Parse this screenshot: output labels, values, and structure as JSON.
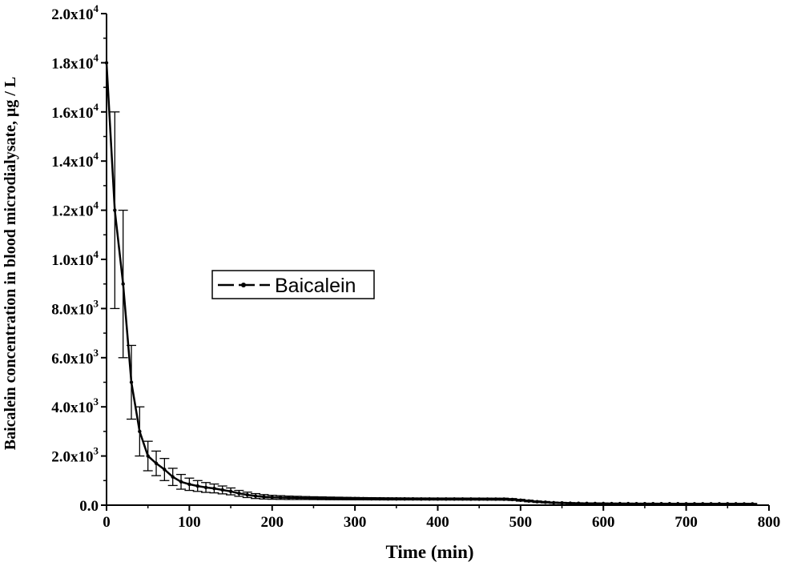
{
  "chart_data": {
    "type": "line",
    "title": "",
    "xlabel": "Time (min)",
    "ylabel": "Baicalein concentration in blood microdialysate, μg / L",
    "xlim": [
      0,
      800
    ],
    "ylim": [
      0,
      20000
    ],
    "x_ticks": [
      "0",
      "100",
      "200",
      "300",
      "400",
      "500",
      "600",
      "700",
      "800"
    ],
    "y_ticks": [
      {
        "mant": "0.0",
        "exp": ""
      },
      {
        "mant": "2.0x10",
        "exp": "3"
      },
      {
        "mant": "4.0x10",
        "exp": "3"
      },
      {
        "mant": "6.0x10",
        "exp": "3"
      },
      {
        "mant": "8.0x10",
        "exp": "3"
      },
      {
        "mant": "1.0x10",
        "exp": "4"
      },
      {
        "mant": "1.2x10",
        "exp": "4"
      },
      {
        "mant": "1.4x10",
        "exp": "4"
      },
      {
        "mant": "1.6x10",
        "exp": "4"
      },
      {
        "mant": "1.8x10",
        "exp": "4"
      },
      {
        "mant": "2.0x10",
        "exp": "4"
      }
    ],
    "grid": false,
    "legend": {
      "placement": "center-left",
      "entries": [
        "Baicalein"
      ]
    },
    "line_color": "#000000",
    "series": [
      {
        "name": "Baicalein",
        "x": [
          0,
          10,
          20,
          30,
          40,
          50,
          60,
          70,
          80,
          90,
          100,
          110,
          120,
          130,
          140,
          150,
          160,
          170,
          180,
          190,
          200,
          210,
          220,
          230,
          240,
          250,
          260,
          270,
          280,
          290,
          300,
          310,
          320,
          330,
          340,
          350,
          360,
          370,
          380,
          390,
          400,
          410,
          420,
          430,
          440,
          450,
          460,
          470,
          480,
          490,
          500,
          510,
          520,
          530,
          540,
          550,
          560,
          570,
          580,
          590,
          600,
          610,
          620,
          630,
          640,
          650,
          660,
          670,
          680,
          690,
          700,
          710,
          720,
          730,
          740,
          750,
          760,
          770,
          780
        ],
        "y": [
          18000,
          12000,
          9000,
          5000,
          3000,
          2000,
          1700,
          1450,
          1150,
          950,
          850,
          780,
          720,
          680,
          620,
          560,
          480,
          420,
          370,
          340,
          320,
          310,
          300,
          295,
          290,
          285,
          280,
          275,
          272,
          268,
          265,
          262,
          260,
          258,
          256,
          255,
          254,
          253,
          252,
          251,
          250,
          250,
          250,
          249,
          248,
          247,
          246,
          245,
          244,
          230,
          200,
          170,
          140,
          120,
          100,
          90,
          80,
          75,
          70,
          68,
          65,
          63,
          62,
          61,
          60,
          60,
          59,
          58,
          58,
          57,
          56,
          56,
          55,
          55,
          54,
          54,
          53,
          52,
          50
        ],
        "error": [
          0,
          4000,
          3000,
          1500,
          1000,
          600,
          500,
          450,
          350,
          300,
          250,
          220,
          200,
          180,
          160,
          140,
          120,
          110,
          100,
          90,
          80,
          75,
          70,
          65,
          60,
          58,
          56,
          54,
          52,
          50,
          48,
          46,
          45,
          44,
          43,
          42,
          41,
          40,
          40,
          40,
          40,
          40,
          40,
          40,
          40,
          40,
          40,
          40,
          40,
          38,
          35,
          32,
          30,
          28,
          25,
          24,
          23,
          22,
          21,
          20,
          20,
          20,
          20,
          20,
          20,
          20,
          20,
          20,
          20,
          20,
          20,
          20,
          20,
          20,
          20,
          20,
          20,
          20,
          20
        ]
      }
    ]
  }
}
